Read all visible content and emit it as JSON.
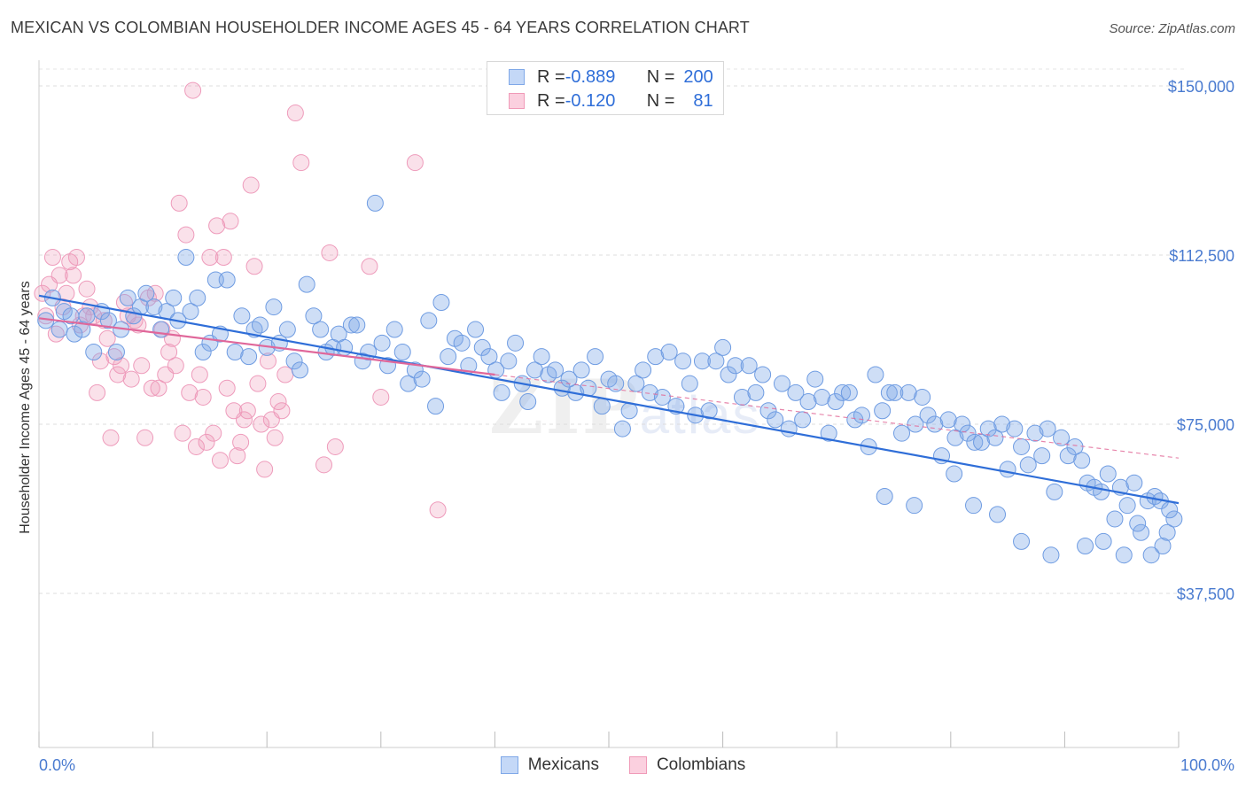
{
  "title": "MEXICAN VS COLOMBIAN HOUSEHOLDER INCOME AGES 45 - 64 YEARS CORRELATION CHART",
  "source": "Source: ZipAtlas.com",
  "watermark": {
    "main": "ZIP",
    "sub": "atlas"
  },
  "legend": {
    "rows": [
      {
        "r_label": "R = ",
        "r_value": "-0.889",
        "n_label": "N = ",
        "n_value": "200",
        "color": "#7fa8e8"
      },
      {
        "r_label": "R = ",
        "r_value": "-0.120",
        "n_label": "N = ",
        "n_value": "81",
        "color": "#f09ab8"
      }
    ]
  },
  "bottom_legend": [
    {
      "label": "Mexicans",
      "color": "#7fa8e8"
    },
    {
      "label": "Colombians",
      "color": "#f09ab8"
    }
  ],
  "colors": {
    "blue": "#3a76d6",
    "pink": "#e26a98",
    "axis_text": "#4a7bd0"
  },
  "chart_data": {
    "type": "scatter",
    "title": "MEXICAN VS COLOMBIAN HOUSEHOLDER INCOME AGES 45 - 64 YEARS CORRELATION CHART",
    "xlabel": "",
    "ylabel": "Householder Income Ages 45 - 64 years",
    "xlim": [
      0,
      100
    ],
    "ylim": [
      0,
      155000
    ],
    "y_ticks": [
      37500,
      75000,
      112500,
      150000
    ],
    "y_tick_labels": [
      "$37,500",
      "$75,000",
      "$112,500",
      "$150,000"
    ],
    "x_tick_labels": [
      "0.0%",
      "100.0%"
    ],
    "grid": true,
    "legend_position": "top-center",
    "series": [
      {
        "name": "Mexicans",
        "trend": {
          "x": [
            0,
            100
          ],
          "y": [
            103500,
            57500
          ],
          "style": "solid"
        },
        "points": [
          [
            0.6,
            98000
          ],
          [
            1.2,
            103000
          ],
          [
            1.8,
            96000
          ],
          [
            2.2,
            100000
          ],
          [
            2.8,
            99000
          ],
          [
            3.1,
            95000
          ],
          [
            3.8,
            96000
          ],
          [
            4.2,
            99000
          ],
          [
            4.8,
            91000
          ],
          [
            5.5,
            100000
          ],
          [
            6.1,
            98000
          ],
          [
            6.8,
            91000
          ],
          [
            7.2,
            96000
          ],
          [
            7.8,
            103000
          ],
          [
            8.3,
            99000
          ],
          [
            8.9,
            101000
          ],
          [
            9.4,
            104000
          ],
          [
            10.1,
            101000
          ],
          [
            10.7,
            96000
          ],
          [
            11.2,
            100000
          ],
          [
            11.8,
            103000
          ],
          [
            12.2,
            98000
          ],
          [
            12.9,
            112000
          ],
          [
            13.3,
            100000
          ],
          [
            13.9,
            103000
          ],
          [
            14.4,
            91000
          ],
          [
            15.0,
            93000
          ],
          [
            15.5,
            107000
          ],
          [
            15.9,
            95000
          ],
          [
            16.5,
            107000
          ],
          [
            17.2,
            91000
          ],
          [
            17.8,
            99000
          ],
          [
            18.4,
            90000
          ],
          [
            18.9,
            96000
          ],
          [
            19.4,
            97000
          ],
          [
            20.0,
            92000
          ],
          [
            20.6,
            101000
          ],
          [
            21.1,
            93000
          ],
          [
            21.8,
            96000
          ],
          [
            22.4,
            89000
          ],
          [
            22.9,
            87000
          ],
          [
            23.5,
            106000
          ],
          [
            24.1,
            99000
          ],
          [
            24.7,
            96000
          ],
          [
            25.2,
            91000
          ],
          [
            25.8,
            92000
          ],
          [
            26.3,
            95000
          ],
          [
            26.8,
            92000
          ],
          [
            27.4,
            97000
          ],
          [
            27.9,
            97000
          ],
          [
            28.4,
            89000
          ],
          [
            28.9,
            91000
          ],
          [
            29.5,
            124000
          ],
          [
            30.1,
            93000
          ],
          [
            30.6,
            88000
          ],
          [
            31.2,
            96000
          ],
          [
            31.9,
            91000
          ],
          [
            32.4,
            84000
          ],
          [
            33.0,
            87000
          ],
          [
            33.6,
            85000
          ],
          [
            34.2,
            98000
          ],
          [
            34.8,
            79000
          ],
          [
            35.3,
            102000
          ],
          [
            35.9,
            90000
          ],
          [
            36.5,
            94000
          ],
          [
            37.1,
            93000
          ],
          [
            37.7,
            88000
          ],
          [
            38.3,
            96000
          ],
          [
            38.9,
            92000
          ],
          [
            39.5,
            90000
          ],
          [
            40.1,
            87000
          ],
          [
            40.6,
            82000
          ],
          [
            41.2,
            89000
          ],
          [
            41.8,
            93000
          ],
          [
            42.4,
            84000
          ],
          [
            42.9,
            80000
          ],
          [
            43.5,
            87000
          ],
          [
            44.1,
            90000
          ],
          [
            44.7,
            86000
          ],
          [
            45.3,
            87000
          ],
          [
            45.9,
            83000
          ],
          [
            46.5,
            85000
          ],
          [
            47.1,
            82000
          ],
          [
            47.6,
            87000
          ],
          [
            48.2,
            83000
          ],
          [
            48.8,
            90000
          ],
          [
            49.4,
            79000
          ],
          [
            50.0,
            85000
          ],
          [
            50.6,
            84000
          ],
          [
            51.2,
            74000
          ],
          [
            51.8,
            78000
          ],
          [
            52.4,
            84000
          ],
          [
            53.0,
            87000
          ],
          [
            53.6,
            82000
          ],
          [
            54.1,
            90000
          ],
          [
            54.7,
            81000
          ],
          [
            55.3,
            91000
          ],
          [
            55.9,
            79000
          ],
          [
            56.5,
            89000
          ],
          [
            57.1,
            84000
          ],
          [
            57.6,
            77000
          ],
          [
            58.2,
            89000
          ],
          [
            58.8,
            78000
          ],
          [
            59.4,
            89000
          ],
          [
            60.0,
            92000
          ],
          [
            60.5,
            86000
          ],
          [
            61.1,
            88000
          ],
          [
            61.7,
            81000
          ],
          [
            62.3,
            88000
          ],
          [
            62.9,
            82000
          ],
          [
            63.5,
            86000
          ],
          [
            64.0,
            78000
          ],
          [
            64.6,
            76000
          ],
          [
            65.2,
            84000
          ],
          [
            65.8,
            74000
          ],
          [
            66.4,
            82000
          ],
          [
            67.0,
            76000
          ],
          [
            67.5,
            80000
          ],
          [
            68.1,
            85000
          ],
          [
            68.7,
            81000
          ],
          [
            69.3,
            73000
          ],
          [
            69.9,
            80000
          ],
          [
            70.5,
            82000
          ],
          [
            71.1,
            82000
          ],
          [
            71.6,
            76000
          ],
          [
            72.2,
            77000
          ],
          [
            72.8,
            70000
          ],
          [
            73.4,
            86000
          ],
          [
            74.0,
            78000
          ],
          [
            74.6,
            82000
          ],
          [
            75.1,
            82000
          ],
          [
            75.7,
            73000
          ],
          [
            76.3,
            82000
          ],
          [
            76.9,
            75000
          ],
          [
            77.5,
            81000
          ],
          [
            78.0,
            77000
          ],
          [
            78.6,
            75000
          ],
          [
            79.2,
            68000
          ],
          [
            79.8,
            76000
          ],
          [
            80.4,
            72000
          ],
          [
            81.0,
            75000
          ],
          [
            81.5,
            73000
          ],
          [
            82.1,
            71000
          ],
          [
            82.7,
            71000
          ],
          [
            83.3,
            74000
          ],
          [
            83.9,
            72000
          ],
          [
            84.5,
            75000
          ],
          [
            85.0,
            65000
          ],
          [
            85.6,
            74000
          ],
          [
            86.2,
            70000
          ],
          [
            86.8,
            66000
          ],
          [
            87.4,
            73000
          ],
          [
            88.0,
            68000
          ],
          [
            88.5,
            74000
          ],
          [
            89.1,
            60000
          ],
          [
            89.7,
            72000
          ],
          [
            90.3,
            68000
          ],
          [
            90.9,
            70000
          ],
          [
            91.5,
            67000
          ],
          [
            92.0,
            62000
          ],
          [
            92.6,
            61000
          ],
          [
            93.2,
            60000
          ],
          [
            93.8,
            64000
          ],
          [
            94.4,
            54000
          ],
          [
            94.9,
            61000
          ],
          [
            95.5,
            57000
          ],
          [
            96.1,
            62000
          ],
          [
            96.7,
            51000
          ],
          [
            97.3,
            58000
          ],
          [
            97.9,
            59000
          ],
          [
            98.4,
            58000
          ],
          [
            99.0,
            51000
          ],
          [
            99.6,
            54000
          ],
          [
            99.2,
            56000
          ],
          [
            98.6,
            48000
          ],
          [
            97.6,
            46000
          ],
          [
            96.4,
            53000
          ],
          [
            95.2,
            46000
          ],
          [
            93.4,
            49000
          ],
          [
            91.8,
            48000
          ],
          [
            88.8,
            46000
          ],
          [
            86.2,
            49000
          ],
          [
            84.1,
            55000
          ],
          [
            82.0,
            57000
          ],
          [
            80.3,
            64000
          ],
          [
            76.8,
            57000
          ],
          [
            74.2,
            59000
          ]
        ]
      },
      {
        "name": "Colombians",
        "trend": {
          "x": [
            0,
            40
          ],
          "y": [
            98500,
            86000
          ],
          "style": "solid",
          "dashed_extension": {
            "x": [
              40,
              100
            ],
            "y": [
              86000,
              67500
            ]
          }
        },
        "points": [
          [
            0.3,
            104000
          ],
          [
            0.6,
            99000
          ],
          [
            0.9,
            106000
          ],
          [
            1.2,
            112000
          ],
          [
            1.5,
            95000
          ],
          [
            1.8,
            108000
          ],
          [
            2.1,
            101000
          ],
          [
            2.4,
            104000
          ],
          [
            2.7,
            111000
          ],
          [
            3.0,
            108000
          ],
          [
            3.3,
            112000
          ],
          [
            3.6,
            97000
          ],
          [
            3.9,
            99000
          ],
          [
            4.2,
            105000
          ],
          [
            4.5,
            101000
          ],
          [
            4.8,
            99000
          ],
          [
            5.1,
            82000
          ],
          [
            5.4,
            89000
          ],
          [
            5.7,
            98000
          ],
          [
            6.0,
            94000
          ],
          [
            6.3,
            72000
          ],
          [
            6.6,
            90000
          ],
          [
            6.9,
            86000
          ],
          [
            7.2,
            88000
          ],
          [
            7.5,
            102000
          ],
          [
            7.8,
            99000
          ],
          [
            8.1,
            85000
          ],
          [
            8.4,
            98000
          ],
          [
            8.7,
            97000
          ],
          [
            9.0,
            88000
          ],
          [
            9.3,
            72000
          ],
          [
            9.6,
            103000
          ],
          [
            9.9,
            83000
          ],
          [
            10.2,
            104000
          ],
          [
            10.5,
            83000
          ],
          [
            10.8,
            96000
          ],
          [
            11.1,
            86000
          ],
          [
            11.4,
            91000
          ],
          [
            11.7,
            94000
          ],
          [
            12.0,
            88000
          ],
          [
            12.3,
            124000
          ],
          [
            12.6,
            73000
          ],
          [
            12.9,
            117000
          ],
          [
            13.2,
            82000
          ],
          [
            13.5,
            149000
          ],
          [
            13.8,
            70000
          ],
          [
            14.1,
            86000
          ],
          [
            14.4,
            81000
          ],
          [
            14.7,
            71000
          ],
          [
            15.0,
            112000
          ],
          [
            15.3,
            73000
          ],
          [
            15.6,
            119000
          ],
          [
            15.9,
            67000
          ],
          [
            16.2,
            112000
          ],
          [
            16.5,
            83000
          ],
          [
            16.8,
            120000
          ],
          [
            17.1,
            78000
          ],
          [
            17.4,
            68000
          ],
          [
            17.7,
            71000
          ],
          [
            18.0,
            76000
          ],
          [
            18.3,
            78000
          ],
          [
            18.6,
            128000
          ],
          [
            18.9,
            110000
          ],
          [
            19.2,
            84000
          ],
          [
            19.5,
            75000
          ],
          [
            19.8,
            65000
          ],
          [
            20.1,
            89000
          ],
          [
            20.4,
            76000
          ],
          [
            20.7,
            72000
          ],
          [
            21.0,
            80000
          ],
          [
            21.3,
            78000
          ],
          [
            21.6,
            86000
          ],
          [
            22.5,
            144000
          ],
          [
            23.0,
            133000
          ],
          [
            25.0,
            66000
          ],
          [
            25.5,
            113000
          ],
          [
            26.0,
            70000
          ],
          [
            29.0,
            110000
          ],
          [
            30.0,
            81000
          ],
          [
            33.0,
            133000
          ],
          [
            35.0,
            56000
          ]
        ]
      }
    ]
  }
}
